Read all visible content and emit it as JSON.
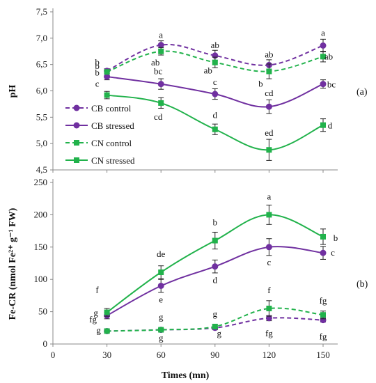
{
  "chart_data": [
    {
      "type": "line",
      "panel_label": "(a)",
      "ylabel": "pH",
      "xlabel": "",
      "ylim": [
        4.5,
        7.5
      ],
      "yticks": [
        "4,5",
        "5,0",
        "5,5",
        "6,0",
        "6,5",
        "7,0",
        "7,5"
      ],
      "x": [
        30,
        60,
        90,
        120,
        150
      ],
      "legend_position": "left",
      "series": [
        {
          "name": "CB control",
          "color": "#7030A0",
          "dash": true,
          "marker": "circle",
          "values": [
            6.38,
            6.87,
            6.67,
            6.49,
            6.86
          ],
          "errors": [
            0.04,
            0.08,
            0.1,
            0.1,
            0.12
          ],
          "labels": [
            "b",
            "a",
            "ab",
            "ab",
            "a"
          ]
        },
        {
          "name": "CB stressed",
          "color": "#7030A0",
          "dash": false,
          "marker": "circle",
          "values": [
            6.27,
            6.13,
            5.94,
            5.7,
            6.13
          ],
          "errors": [
            0.06,
            0.1,
            0.1,
            0.13,
            0.08
          ],
          "labels": [
            "b",
            "bc",
            "c",
            "cd",
            "bc"
          ]
        },
        {
          "name": "CN control",
          "color": "#21B24B",
          "dash": true,
          "marker": "square",
          "values": [
            6.36,
            6.75,
            6.54,
            6.37,
            6.65
          ],
          "errors": [
            0.04,
            0.07,
            0.1,
            0.14,
            0.1
          ],
          "labels": [
            "b",
            "ab",
            "ab",
            "b",
            "ab"
          ]
        },
        {
          "name": "CN stressed",
          "color": "#21B24B",
          "dash": false,
          "marker": "square",
          "values": [
            5.92,
            5.77,
            5.27,
            4.88,
            5.35
          ],
          "errors": [
            0.07,
            0.1,
            0.1,
            0.2,
            0.12
          ],
          "labels": [
            "c",
            "cd",
            "d",
            "ed",
            "d"
          ]
        }
      ]
    },
    {
      "type": "line",
      "panel_label": "(b)",
      "ylabel": "Fe-CR (nmol Fe²⁺ g⁻¹ FW)",
      "xlabel": "Times (mn)",
      "ylim": [
        0,
        250
      ],
      "yticks": [
        "0",
        "50",
        "100",
        "150",
        "200",
        "250"
      ],
      "x": [
        30,
        60,
        90,
        120,
        150
      ],
      "xticks": [
        "0",
        "30",
        "60",
        "90",
        "120",
        "150"
      ],
      "series": [
        {
          "name": "CB control",
          "color": "#7030A0",
          "dash": true,
          "marker": "circle",
          "values": [
            20,
            22,
            25,
            40,
            37
          ],
          "errors": [
            2,
            2,
            3,
            4,
            3
          ],
          "labels": [
            "g",
            "g",
            "g",
            "fg",
            "fg"
          ]
        },
        {
          "name": "CB stressed",
          "color": "#7030A0",
          "dash": false,
          "marker": "circle",
          "values": [
            44,
            90,
            120,
            150,
            141
          ],
          "errors": [
            5,
            10,
            10,
            13,
            10
          ],
          "labels": [
            "fg",
            "e",
            "d",
            "c",
            "c"
          ]
        },
        {
          "name": "CN control",
          "color": "#21B24B",
          "dash": true,
          "marker": "square",
          "values": [
            20,
            22,
            27,
            55,
            45
          ],
          "errors": [
            2,
            2,
            3,
            12,
            6
          ],
          "labels": [
            "g",
            "g",
            "g",
            "f",
            "fg"
          ]
        },
        {
          "name": "CN stressed",
          "color": "#21B24B",
          "dash": false,
          "marker": "square",
          "values": [
            49,
            111,
            160,
            200,
            166
          ],
          "errors": [
            6,
            10,
            13,
            15,
            12
          ],
          "labels": [
            "f",
            "de",
            "b",
            "a",
            "b"
          ]
        }
      ]
    }
  ]
}
